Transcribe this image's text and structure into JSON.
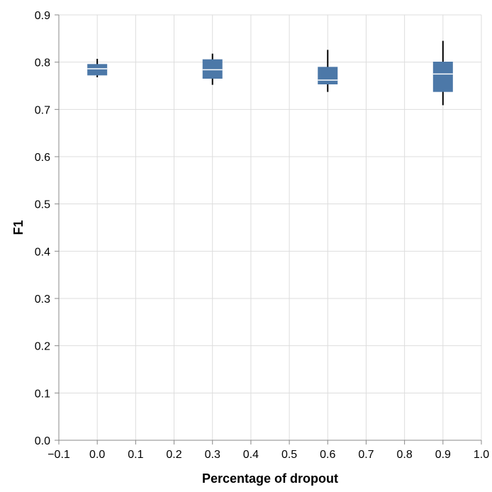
{
  "chart_data": {
    "type": "boxplot",
    "xlabel": "Percentage of dropout",
    "ylabel": "F1",
    "xlim": [
      -0.1,
      1.0
    ],
    "ylim": [
      0.0,
      0.9
    ],
    "x_ticks": [
      -0.1,
      0.0,
      0.1,
      0.2,
      0.3,
      0.4,
      0.5,
      0.6,
      0.7,
      0.8,
      0.9,
      1.0
    ],
    "x_tick_labels": [
      "−0.1",
      "0.0",
      "0.1",
      "0.2",
      "0.3",
      "0.4",
      "0.5",
      "0.6",
      "0.7",
      "0.8",
      "0.9",
      "1.0"
    ],
    "y_ticks": [
      0.0,
      0.1,
      0.2,
      0.3,
      0.4,
      0.5,
      0.6,
      0.7,
      0.8,
      0.9
    ],
    "y_tick_labels": [
      "0.0",
      "0.1",
      "0.2",
      "0.3",
      "0.4",
      "0.5",
      "0.6",
      "0.7",
      "0.8",
      "0.9"
    ],
    "grid": true,
    "box_color": "#4c78a8",
    "median_color": "#ffffff",
    "whisker_color": "#000000",
    "boxes": [
      {
        "x": 0.0,
        "min": 0.768,
        "q1": 0.772,
        "median": 0.786,
        "q3": 0.796,
        "max": 0.807
      },
      {
        "x": 0.3,
        "min": 0.752,
        "q1": 0.765,
        "median": 0.784,
        "q3": 0.806,
        "max": 0.818
      },
      {
        "x": 0.6,
        "min": 0.737,
        "q1": 0.753,
        "median": 0.762,
        "q3": 0.79,
        "max": 0.826
      },
      {
        "x": 0.9,
        "min": 0.709,
        "q1": 0.737,
        "median": 0.775,
        "q3": 0.801,
        "max": 0.845
      }
    ]
  }
}
